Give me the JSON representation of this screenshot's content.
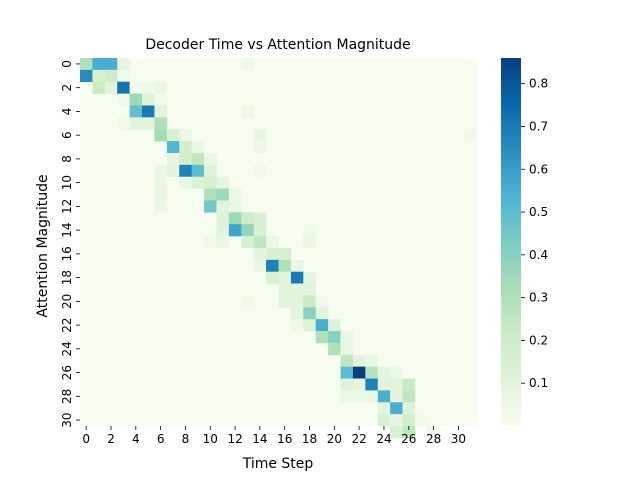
{
  "chart_data": {
    "type": "heatmap",
    "title": "Decoder Time vs Attention Magnitude",
    "xlabel": "Time Step",
    "ylabel": "Attention Magnitude",
    "x_tick_labels": [
      "0",
      "2",
      "4",
      "6",
      "8",
      "10",
      "12",
      "14",
      "16",
      "18",
      "20",
      "22",
      "24",
      "26",
      "28",
      "30"
    ],
    "y_tick_labels": [
      "0",
      "2",
      "4",
      "6",
      "8",
      "10",
      "12",
      "14",
      "16",
      "18",
      "20",
      "22",
      "24",
      "26",
      "28",
      "30"
    ],
    "n_cols": 32,
    "n_rows": 31,
    "colormap": "GnBu",
    "colorbar_ticks": [
      "0.1",
      "0.2",
      "0.3",
      "0.4",
      "0.5",
      "0.6",
      "0.7",
      "0.8"
    ],
    "colorbar_range": [
      0.0,
      0.86
    ],
    "cells": [
      [
        0,
        0,
        0.3
      ],
      [
        0,
        1,
        0.55
      ],
      [
        0,
        2,
        0.55
      ],
      [
        0,
        3,
        0.08
      ],
      [
        0,
        13,
        0.04
      ],
      [
        1,
        0,
        0.65
      ],
      [
        1,
        1,
        0.15
      ],
      [
        1,
        2,
        0.2
      ],
      [
        1,
        3,
        0.04
      ],
      [
        2,
        1,
        0.22
      ],
      [
        2,
        2,
        0.1
      ],
      [
        2,
        3,
        0.72
      ],
      [
        2,
        4,
        0.03
      ],
      [
        2,
        5,
        0.04
      ],
      [
        2,
        6,
        0.06
      ],
      [
        3,
        3,
        0.04
      ],
      [
        3,
        4,
        0.35
      ],
      [
        3,
        5,
        0.12
      ],
      [
        3,
        6,
        0.03
      ],
      [
        4,
        4,
        0.48
      ],
      [
        4,
        5,
        0.7
      ],
      [
        4,
        6,
        0.1
      ],
      [
        4,
        13,
        0.05
      ],
      [
        5,
        3,
        0.04
      ],
      [
        5,
        4,
        0.1
      ],
      [
        5,
        5,
        0.1
      ],
      [
        5,
        6,
        0.3
      ],
      [
        6,
        6,
        0.33
      ],
      [
        6,
        7,
        0.15
      ],
      [
        6,
        8,
        0.05
      ],
      [
        6,
        14,
        0.07
      ],
      [
        6,
        31,
        0.04
      ],
      [
        7,
        7,
        0.53
      ],
      [
        7,
        8,
        0.18
      ],
      [
        7,
        9,
        0.06
      ],
      [
        7,
        14,
        0.05
      ],
      [
        8,
        7,
        0.08
      ],
      [
        8,
        8,
        0.18
      ],
      [
        8,
        9,
        0.25
      ],
      [
        8,
        10,
        0.06
      ],
      [
        9,
        6,
        0.06
      ],
      [
        9,
        7,
        0.1
      ],
      [
        9,
        8,
        0.68
      ],
      [
        9,
        9,
        0.5
      ],
      [
        9,
        10,
        0.12
      ],
      [
        9,
        14,
        0.04
      ],
      [
        10,
        6,
        0.06
      ],
      [
        10,
        8,
        0.06
      ],
      [
        10,
        9,
        0.12
      ],
      [
        10,
        10,
        0.16
      ],
      [
        10,
        11,
        0.08
      ],
      [
        11,
        6,
        0.07
      ],
      [
        11,
        10,
        0.3
      ],
      [
        11,
        11,
        0.35
      ],
      [
        11,
        12,
        0.05
      ],
      [
        12,
        6,
        0.06
      ],
      [
        12,
        10,
        0.45
      ],
      [
        12,
        11,
        0.1
      ],
      [
        12,
        12,
        0.06
      ],
      [
        13,
        11,
        0.12
      ],
      [
        13,
        12,
        0.35
      ],
      [
        13,
        13,
        0.2
      ],
      [
        13,
        14,
        0.15
      ],
      [
        14,
        11,
        0.1
      ],
      [
        14,
        12,
        0.58
      ],
      [
        14,
        13,
        0.38
      ],
      [
        14,
        14,
        0.15
      ],
      [
        14,
        18,
        0.04
      ],
      [
        15,
        10,
        0.04
      ],
      [
        15,
        11,
        0.06
      ],
      [
        15,
        13,
        0.15
      ],
      [
        15,
        14,
        0.25
      ],
      [
        15,
        15,
        0.06
      ],
      [
        15,
        18,
        0.06
      ],
      [
        16,
        14,
        0.1
      ],
      [
        16,
        15,
        0.15
      ],
      [
        16,
        16,
        0.15
      ],
      [
        17,
        14,
        0.06
      ],
      [
        17,
        15,
        0.68
      ],
      [
        17,
        16,
        0.3
      ],
      [
        17,
        17,
        0.06
      ],
      [
        18,
        15,
        0.15
      ],
      [
        18,
        16,
        0.1
      ],
      [
        18,
        17,
        0.7
      ],
      [
        18,
        18,
        0.08
      ],
      [
        19,
        16,
        0.1
      ],
      [
        19,
        17,
        0.1
      ],
      [
        19,
        18,
        0.1
      ],
      [
        20,
        13,
        0.04
      ],
      [
        20,
        16,
        0.1
      ],
      [
        20,
        17,
        0.1
      ],
      [
        20,
        18,
        0.22
      ],
      [
        20,
        19,
        0.04
      ],
      [
        21,
        17,
        0.1
      ],
      [
        21,
        18,
        0.4
      ],
      [
        21,
        19,
        0.1
      ],
      [
        22,
        17,
        0.04
      ],
      [
        22,
        18,
        0.12
      ],
      [
        22,
        19,
        0.55
      ],
      [
        22,
        20,
        0.12
      ],
      [
        23,
        19,
        0.3
      ],
      [
        23,
        20,
        0.4
      ],
      [
        23,
        21,
        0.06
      ],
      [
        24,
        20,
        0.3
      ],
      [
        24,
        21,
        0.06
      ],
      [
        25,
        21,
        0.25
      ],
      [
        25,
        22,
        0.1
      ],
      [
        25,
        23,
        0.06
      ],
      [
        26,
        21,
        0.5
      ],
      [
        26,
        22,
        0.86
      ],
      [
        26,
        23,
        0.28
      ],
      [
        26,
        24,
        0.08
      ],
      [
        26,
        25,
        0.05
      ],
      [
        27,
        21,
        0.12
      ],
      [
        27,
        22,
        0.08
      ],
      [
        27,
        23,
        0.68
      ],
      [
        27,
        24,
        0.1
      ],
      [
        27,
        25,
        0.1
      ],
      [
        27,
        26,
        0.22
      ],
      [
        28,
        21,
        0.05
      ],
      [
        28,
        22,
        0.05
      ],
      [
        28,
        23,
        0.06
      ],
      [
        28,
        24,
        0.55
      ],
      [
        28,
        25,
        0.1
      ],
      [
        28,
        26,
        0.25
      ],
      [
        29,
        24,
        0.1
      ],
      [
        29,
        25,
        0.55
      ],
      [
        29,
        26,
        0.12
      ],
      [
        30,
        24,
        0.15
      ],
      [
        30,
        25,
        0.08
      ],
      [
        30,
        26,
        0.18
      ],
      [
        30,
        27,
        0.03
      ],
      [
        31,
        25,
        0.15
      ],
      [
        31,
        26,
        0.25
      ],
      [
        31,
        28,
        0.04
      ]
    ]
  }
}
